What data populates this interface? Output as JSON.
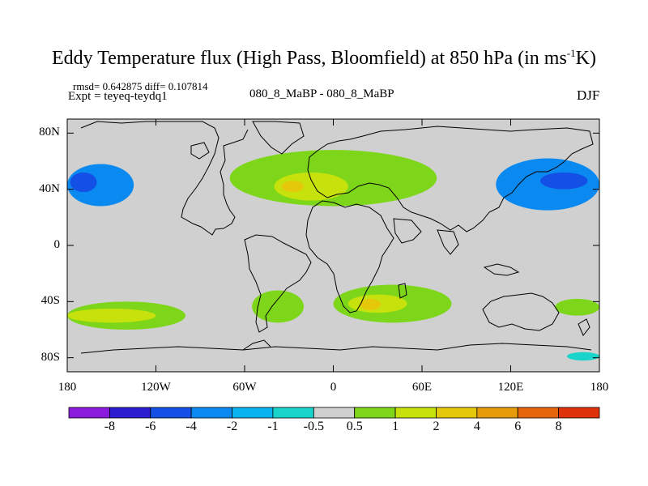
{
  "title": {
    "main": "Eddy Temperature flux (High Pass, Bloomfield) at 850 hPa (in ms",
    "sup": "-1",
    "end": "K)"
  },
  "stats": "rmsd= 0.642875 diff= 0.107814",
  "expt": "Expt = teyeq-teydq1",
  "experiment_names": "080_8_MaBP - 080_8_MaBP",
  "season": "DJF",
  "map": {
    "lat_range": [
      -90,
      90
    ],
    "lon_range": [
      -180,
      180
    ],
    "lat_ticks": [
      "80N",
      "40N",
      "0",
      "40S",
      "80S"
    ],
    "lat_values": [
      80,
      40,
      0,
      -40,
      -80
    ],
    "lon_ticks": [
      "180",
      "120W",
      "60W",
      "0",
      "60E",
      "120E",
      "180"
    ],
    "lon_values": [
      -180,
      -120,
      -60,
      0,
      60,
      120,
      180
    ],
    "background_color": "#d0d0d0",
    "coastline_color": "#000000"
  },
  "colorbar": {
    "labels": [
      "-8",
      "-6",
      "-4",
      "-2",
      "-1",
      "-0.5",
      "0.5",
      "1",
      "2",
      "4",
      "6",
      "8"
    ],
    "colors": [
      "#8a1bdc",
      "#2a1ed0",
      "#1450e6",
      "#0a8af0",
      "#09b4ee",
      "#1ad4cc",
      "#d0d0d0",
      "#7ed61a",
      "#c6e10c",
      "#e6c80a",
      "#e69c0a",
      "#e6640a",
      "#e0320a"
    ]
  },
  "chart_data": {
    "type": "contour_map",
    "variable": "Eddy Temperature flux (High Pass) at 850 hPa",
    "units": "m s-1 K",
    "season": "DJF",
    "levels": [
      -8,
      -6,
      -4,
      -2,
      -1,
      -0.5,
      0.5,
      1,
      2,
      4,
      6,
      8
    ],
    "regions": [
      {
        "name": "north-pacific-west-negative",
        "lon": [
          -180,
          -135
        ],
        "lat": [
          28,
          58
        ],
        "level": -2,
        "color": "#0a8af0"
      },
      {
        "name": "north-pacific-west-core",
        "lon": [
          -178,
          -160
        ],
        "lat": [
          38,
          52
        ],
        "level": -4,
        "color": "#1450e6"
      },
      {
        "name": "north-pacific-east-negative",
        "lon": [
          110,
          180
        ],
        "lat": [
          25,
          62
        ],
        "level": -2,
        "color": "#0a8af0"
      },
      {
        "name": "north-pacific-east-core",
        "lon": [
          140,
          172
        ],
        "lat": [
          40,
          52
        ],
        "level": -4,
        "color": "#1450e6"
      },
      {
        "name": "north-atlantic-europe-positive",
        "lon": [
          -70,
          70
        ],
        "lat": [
          28,
          68
        ],
        "level": 1,
        "color": "#7ed61a"
      },
      {
        "name": "north-atlantic-core",
        "lon": [
          -40,
          10
        ],
        "lat": [
          32,
          52
        ],
        "level": 2,
        "color": "#c6e10c"
      },
      {
        "name": "atlantic-max",
        "lon": [
          -35,
          -20
        ],
        "lat": [
          38,
          46
        ],
        "level": 4,
        "color": "#e6c80a"
      },
      {
        "name": "south-pacific-positive",
        "lon": [
          -180,
          -100
        ],
        "lat": [
          -60,
          -40
        ],
        "level": 1,
        "color": "#7ed61a"
      },
      {
        "name": "south-pacific-core",
        "lon": [
          -180,
          -120
        ],
        "lat": [
          -55,
          -45
        ],
        "level": 2,
        "color": "#c6e10c"
      },
      {
        "name": "south-atlantic-positive",
        "lon": [
          0,
          80
        ],
        "lat": [
          -55,
          -28
        ],
        "level": 1,
        "color": "#7ed61a"
      },
      {
        "name": "south-atlantic-core",
        "lon": [
          10,
          50
        ],
        "lat": [
          -48,
          -35
        ],
        "level": 2,
        "color": "#c6e10c"
      },
      {
        "name": "south-africa-max",
        "lon": [
          18,
          32
        ],
        "lat": [
          -46,
          -38
        ],
        "level": 4,
        "color": "#e6c80a"
      },
      {
        "name": "south-atlantic-west-positive",
        "lon": [
          -55,
          -20
        ],
        "lat": [
          -55,
          -32
        ],
        "level": 1,
        "color": "#7ed61a"
      },
      {
        "name": "southern-ocean-east-positive",
        "lon": [
          150,
          180
        ],
        "lat": [
          -50,
          -38
        ],
        "level": 1,
        "color": "#7ed61a"
      },
      {
        "name": "antarctic-negative",
        "lon": [
          158,
          180
        ],
        "lat": [
          -82,
          -76
        ],
        "level": -1,
        "color": "#1ad4cc"
      }
    ]
  }
}
